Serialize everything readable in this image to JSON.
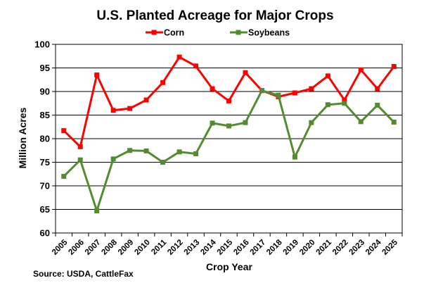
{
  "chart_data": {
    "type": "line",
    "title": "U.S. Planted Acreage for Major Crops",
    "xlabel": "Crop Year",
    "ylabel": "Million Acres",
    "source": "Source: USDA,  CattleFax",
    "ylim": [
      60,
      100
    ],
    "yticks": [
      60,
      65,
      70,
      75,
      80,
      85,
      90,
      95,
      100
    ],
    "grid": "horizontal",
    "legend_position": "top-center",
    "x": [
      "2005",
      "2006",
      "2007",
      "2008",
      "2009",
      "2010",
      "2011",
      "2012",
      "2013",
      "2014",
      "2015",
      "2016",
      "2017",
      "2018",
      "2019",
      "2020",
      "2021",
      "2022",
      "2023",
      "2024",
      "2025"
    ],
    "series": [
      {
        "name": "Corn",
        "color": "#ff0000",
        "values": [
          81.7,
          78.3,
          93.5,
          86.0,
          86.4,
          88.2,
          91.9,
          97.3,
          95.4,
          90.6,
          88.0,
          94.0,
          90.2,
          88.9,
          89.7,
          90.6,
          93.3,
          88.2,
          94.6,
          90.6,
          95.3
        ]
      },
      {
        "name": "Soybeans",
        "color": "#548b2f",
        "values": [
          72.0,
          75.5,
          64.7,
          75.7,
          77.5,
          77.4,
          75.0,
          77.2,
          76.8,
          83.3,
          82.7,
          83.4,
          90.2,
          89.2,
          76.1,
          83.4,
          87.2,
          87.5,
          83.6,
          87.1,
          83.5
        ]
      }
    ]
  }
}
